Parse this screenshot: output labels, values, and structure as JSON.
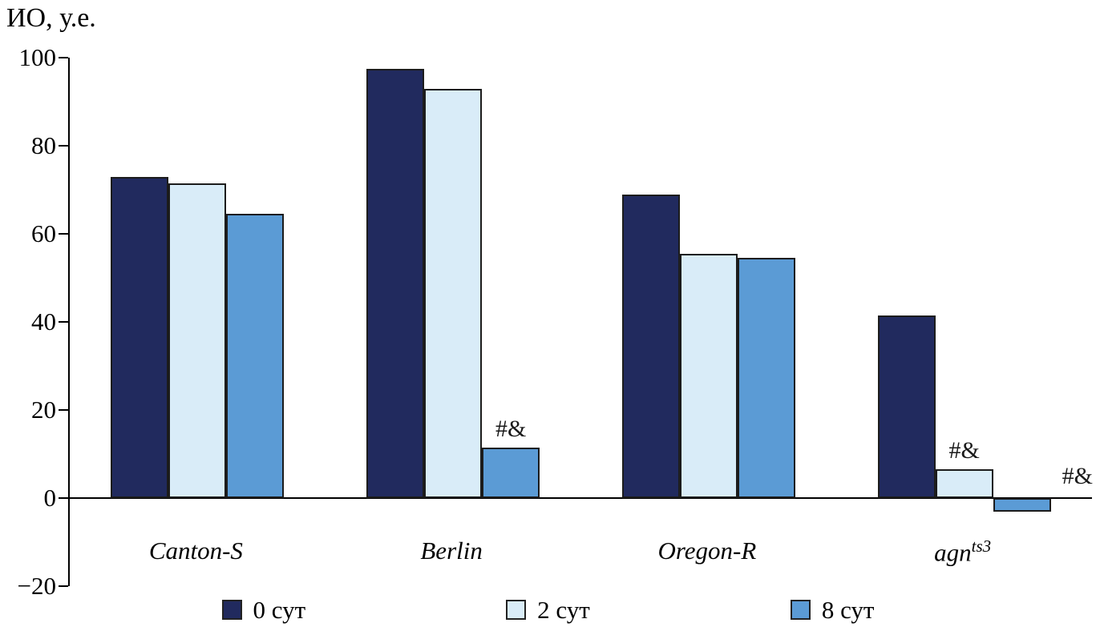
{
  "chart_data": {
    "type": "bar",
    "title": "",
    "ylabel": "ИО, у.е.",
    "xlabel": "",
    "ylim": [
      -20,
      100
    ],
    "yticks": [
      100,
      80,
      60,
      40,
      20,
      0,
      -20
    ],
    "grid": false,
    "legend_position": "bottom",
    "categories": [
      {
        "label": "Canton-S"
      },
      {
        "label": "Berlin"
      },
      {
        "label": "Oregon-R"
      },
      {
        "label": "agn",
        "sup": "ts3"
      }
    ],
    "series": [
      {
        "name": "0 сут",
        "color": "#212a5e",
        "values": [
          73,
          97.5,
          69,
          41.5
        ]
      },
      {
        "name": "2 сут",
        "color": "#d9ecf8",
        "values": [
          71.5,
          93,
          55.5,
          6.5
        ]
      },
      {
        "name": "8 сут",
        "color": "#5b9bd5",
        "values": [
          64.5,
          11.5,
          54.5,
          -3
        ]
      }
    ],
    "annotations": [
      {
        "category": 1,
        "series": 2,
        "text": "#&"
      },
      {
        "category": 3,
        "series": 1,
        "text": "#&"
      },
      {
        "category": 3,
        "series": 2,
        "text": "#&"
      }
    ]
  }
}
